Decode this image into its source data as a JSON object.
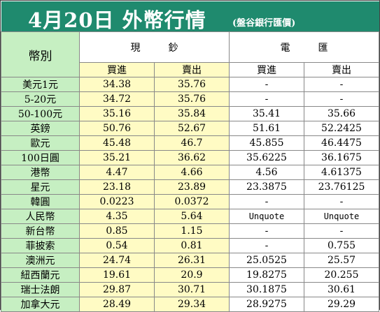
{
  "header": {
    "title": "4月20日 外幣行情",
    "bank": "(盤谷銀行匯價)"
  },
  "table": {
    "currency_header": "幣別",
    "group_cash": "現鈔",
    "group_tt": "電匯",
    "buy_label": "買進",
    "sell_label": "賣出",
    "rows": [
      {
        "name": "美元1元",
        "cash_buy": "34.38",
        "cash_sell": "35.76",
        "tt_buy": "-",
        "tt_sell": "-"
      },
      {
        "name": "5-20元",
        "cash_buy": "34.72",
        "cash_sell": "35.76",
        "tt_buy": "-",
        "tt_sell": "-"
      },
      {
        "name": "50-100元",
        "cash_buy": "35.16",
        "cash_sell": "35.84",
        "tt_buy": "35.41",
        "tt_sell": "35.66"
      },
      {
        "name": "英鎊",
        "cash_buy": "50.76",
        "cash_sell": "52.67",
        "tt_buy": "51.61",
        "tt_sell": "52.2425"
      },
      {
        "name": "歐元",
        "cash_buy": "45.48",
        "cash_sell": "46.7",
        "tt_buy": "45.855",
        "tt_sell": "46.4475"
      },
      {
        "name": "100日圓",
        "cash_buy": "35.21",
        "cash_sell": "36.62",
        "tt_buy": "35.6225",
        "tt_sell": "36.1675"
      },
      {
        "name": "港幣",
        "cash_buy": "4.47",
        "cash_sell": "4.66",
        "tt_buy": "4.56",
        "tt_sell": "4.61375"
      },
      {
        "name": "星元",
        "cash_buy": "23.18",
        "cash_sell": "23.89",
        "tt_buy": "23.3875",
        "tt_sell": "23.76125"
      },
      {
        "name": "韓圓",
        "cash_buy": "0.0223",
        "cash_sell": "0.0372",
        "tt_buy": "-",
        "tt_sell": "-"
      },
      {
        "name": "人民幣",
        "cash_buy": "4.35",
        "cash_sell": "5.64",
        "tt_buy": "Unquote",
        "tt_sell": "Unquote"
      },
      {
        "name": "新台幣",
        "cash_buy": "0.85",
        "cash_sell": "1.15",
        "tt_buy": "-",
        "tt_sell": "-"
      },
      {
        "name": "菲披索",
        "cash_buy": "0.54",
        "cash_sell": "0.81",
        "tt_buy": "-",
        "tt_sell": "0.755"
      },
      {
        "name": "澳洲元",
        "cash_buy": "24.74",
        "cash_sell": "26.31",
        "tt_buy": "25.0525",
        "tt_sell": "25.57"
      },
      {
        "name": "紐西蘭元",
        "cash_buy": "19.61",
        "cash_sell": "20.9",
        "tt_buy": "19.8275",
        "tt_sell": "20.255"
      },
      {
        "name": "瑞士法朗",
        "cash_buy": "29.87",
        "cash_sell": "30.71",
        "tt_buy": "30.1875",
        "tt_sell": "30.61"
      },
      {
        "name": "加拿大元",
        "cash_buy": "28.49",
        "cash_sell": "29.34",
        "tt_buy": "28.9275",
        "tt_sell": "29.29"
      }
    ]
  },
  "colors": {
    "header_bg": "#1f8a6e",
    "currency_col_bg": "#c6efc2",
    "cash_col_bg": "#fffbc4",
    "tt_col_bg": "#ffffff"
  }
}
